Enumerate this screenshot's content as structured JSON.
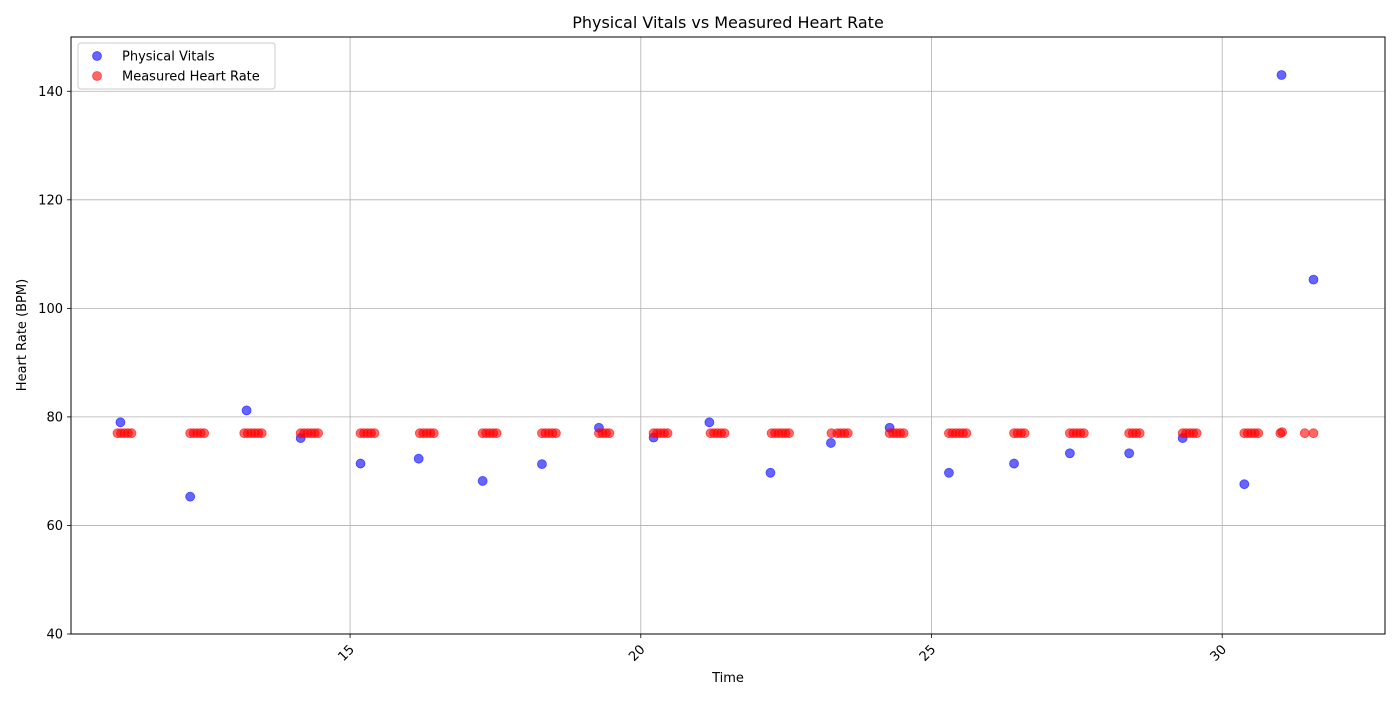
{
  "chart_data": {
    "type": "scatter",
    "title": "Physical Vitals vs Measured Heart Rate",
    "xlabel": "Time",
    "ylabel": "Heart Rate (BPM)",
    "xlim": [
      10.2,
      32.8
    ],
    "ylim": [
      40,
      150
    ],
    "x_ticks": [
      15,
      20,
      25,
      30
    ],
    "y_ticks": [
      40,
      60,
      80,
      100,
      120,
      140
    ],
    "x_tick_rotation": 45,
    "grid": true,
    "legend_position": "top-left",
    "series": [
      {
        "name": "Physical Vitals",
        "color": "#0000ff",
        "points": [
          [
            11.05,
            79
          ],
          [
            12.25,
            65.3
          ],
          [
            13.22,
            81.2
          ],
          [
            14.15,
            76.1
          ],
          [
            15.18,
            71.4
          ],
          [
            16.18,
            72.3
          ],
          [
            17.28,
            68.2
          ],
          [
            18.3,
            71.3
          ],
          [
            19.28,
            78
          ],
          [
            20.22,
            76.2
          ],
          [
            21.18,
            79
          ],
          [
            22.23,
            69.7
          ],
          [
            23.27,
            75.2
          ],
          [
            24.28,
            78
          ],
          [
            25.3,
            69.7
          ],
          [
            26.42,
            71.4
          ],
          [
            27.38,
            73.3
          ],
          [
            28.4,
            73.3
          ],
          [
            29.32,
            76.1
          ],
          [
            30.38,
            67.6
          ],
          [
            31.02,
            143
          ],
          [
            31.57,
            105.3
          ]
        ]
      },
      {
        "name": "Measured Heart Rate",
        "color": "#ff0000",
        "points": [
          [
            11.0,
            77
          ],
          [
            11.06,
            77
          ],
          [
            11.12,
            77
          ],
          [
            11.18,
            77
          ],
          [
            11.24,
            77
          ],
          [
            12.25,
            77
          ],
          [
            12.31,
            77
          ],
          [
            12.37,
            77
          ],
          [
            12.43,
            77
          ],
          [
            12.49,
            77
          ],
          [
            13.18,
            77
          ],
          [
            13.24,
            77
          ],
          [
            13.3,
            77
          ],
          [
            13.36,
            77
          ],
          [
            13.42,
            77
          ],
          [
            13.48,
            77
          ],
          [
            14.15,
            77
          ],
          [
            14.21,
            77
          ],
          [
            14.27,
            77
          ],
          [
            14.33,
            77
          ],
          [
            14.39,
            77
          ],
          [
            14.45,
            77
          ],
          [
            15.18,
            77
          ],
          [
            15.24,
            77
          ],
          [
            15.3,
            77
          ],
          [
            15.36,
            77
          ],
          [
            15.42,
            77
          ],
          [
            16.2,
            77
          ],
          [
            16.26,
            77
          ],
          [
            16.32,
            77
          ],
          [
            16.38,
            77
          ],
          [
            16.44,
            77
          ],
          [
            17.28,
            77
          ],
          [
            17.34,
            77
          ],
          [
            17.4,
            77
          ],
          [
            17.46,
            77
          ],
          [
            17.52,
            77
          ],
          [
            18.3,
            77
          ],
          [
            18.36,
            77
          ],
          [
            18.42,
            77
          ],
          [
            18.48,
            77
          ],
          [
            18.54,
            77
          ],
          [
            19.28,
            77
          ],
          [
            19.34,
            77
          ],
          [
            19.4,
            77
          ],
          [
            19.46,
            77
          ],
          [
            20.22,
            77
          ],
          [
            20.28,
            77
          ],
          [
            20.34,
            77
          ],
          [
            20.4,
            77
          ],
          [
            20.46,
            77
          ],
          [
            21.2,
            77
          ],
          [
            21.26,
            77
          ],
          [
            21.32,
            77
          ],
          [
            21.38,
            77
          ],
          [
            21.44,
            77
          ],
          [
            22.25,
            77
          ],
          [
            22.31,
            77
          ],
          [
            22.37,
            77
          ],
          [
            22.43,
            77
          ],
          [
            22.49,
            77
          ],
          [
            22.55,
            77
          ],
          [
            23.28,
            77
          ],
          [
            23.38,
            77
          ],
          [
            23.44,
            77
          ],
          [
            23.5,
            77
          ],
          [
            23.56,
            77
          ],
          [
            24.28,
            77
          ],
          [
            24.34,
            77
          ],
          [
            24.4,
            77
          ],
          [
            24.46,
            77
          ],
          [
            24.52,
            77
          ],
          [
            25.3,
            77
          ],
          [
            25.36,
            77
          ],
          [
            25.42,
            77
          ],
          [
            25.48,
            77
          ],
          [
            25.54,
            77
          ],
          [
            25.6,
            77
          ],
          [
            26.42,
            77
          ],
          [
            26.48,
            77
          ],
          [
            26.54,
            77
          ],
          [
            26.6,
            77
          ],
          [
            27.38,
            77
          ],
          [
            27.44,
            77
          ],
          [
            27.5,
            77
          ],
          [
            27.56,
            77
          ],
          [
            27.62,
            77
          ],
          [
            28.4,
            77
          ],
          [
            28.46,
            77
          ],
          [
            28.52,
            77
          ],
          [
            28.58,
            77
          ],
          [
            29.32,
            77
          ],
          [
            29.38,
            77
          ],
          [
            29.44,
            77
          ],
          [
            29.5,
            77
          ],
          [
            29.56,
            77
          ],
          [
            30.38,
            77
          ],
          [
            30.44,
            77
          ],
          [
            30.5,
            77
          ],
          [
            30.56,
            77
          ],
          [
            30.62,
            77
          ],
          [
            31.0,
            77
          ],
          [
            31.03,
            77.2
          ],
          [
            31.42,
            77
          ],
          [
            31.57,
            77
          ]
        ]
      }
    ]
  }
}
